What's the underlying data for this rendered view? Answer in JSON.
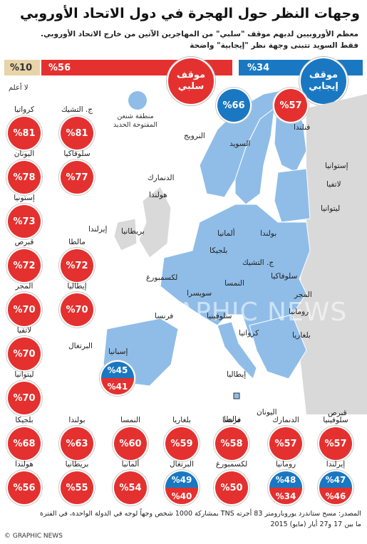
{
  "title": "وجهات النظر حول الهجرة في دول الاتحاد الأوروبي",
  "subtitle_line1": "معظم الأوروبيين لديهم موقف \"سلبي\" من المهاجرين الآتين من خارج الاتحاد الأوروبي.",
  "subtitle_line2": "فقط السويد تتبنى وجهة نظر \"إيجابية\" واضحة",
  "summary": {
    "negative_label": "موقف سلبي",
    "negative_value": "%56",
    "positive_label": "موقف إيجابي",
    "positive_value": "%34",
    "unknown_value": "%10",
    "unknown_label": "لا أعلم"
  },
  "legend": {
    "text": "منطقة شنغن المفتوحة الحديد"
  },
  "colors": {
    "negative": "#e4312f",
    "positive": "#1a78c2",
    "schengen": "#8fbde8",
    "non_schengen": "#d9d9d9"
  },
  "map_labels": {
    "norway": "النرويج",
    "sweden": "السويد",
    "finland": "فنلندا",
    "estonia": "إستوانيا",
    "latvia": "لاتفيا",
    "lithuania": "ليتوانيا",
    "denmark": "الدنمارك",
    "netherlands": "هولندا",
    "ireland": "إيرلندا",
    "uk": "بريطانيا",
    "poland": "بولندا",
    "germany": "ألمانيا",
    "belgium": "بلجيكا",
    "czech": "ج. التشيك",
    "luxembourg": "لكسمبورغ",
    "slovakia": "سلوفاكيا",
    "austria": "النمسا",
    "hungary": "المجر",
    "romania": "رومانيا",
    "france": "فرنسا",
    "switzerland": "سويسرا",
    "slovenia": "سلوفينيا",
    "croatia": "كرواتيا",
    "bulgaria": "بلغاريا",
    "portugal": "البرتغال",
    "spain": "إسبانيا",
    "italy": "إيطاليا",
    "malta": "مالطا",
    "greece": "اليونان",
    "cyprus": "قبرص"
  },
  "map_badges": {
    "sweden": "%66",
    "finland": "%57",
    "spain_pos": "%45",
    "spain_neg": "%41"
  },
  "countries": [
    {
      "name": "كرواتيا",
      "value": "%81"
    },
    {
      "name": "ج. التشيك",
      "value": "%81"
    },
    {
      "name": "اليونان",
      "value": "%78"
    },
    {
      "name": "سلوفاكيا",
      "value": "%77"
    },
    {
      "name": "إستونيا",
      "value": "%73"
    },
    {
      "name": "قبرص",
      "value": "%72"
    },
    {
      "name": "مالطا",
      "value": "%72"
    },
    {
      "name": "المجر",
      "value": "%70"
    },
    {
      "name": "إيطاليا",
      "value": "%70"
    },
    {
      "name": "لاتفيا",
      "value": "%70"
    },
    {
      "name": "ليتوانيا",
      "value": "%70"
    },
    {
      "name": "بلجيكا",
      "value": "%68"
    },
    {
      "name": "بولندا",
      "value": "%63"
    },
    {
      "name": "النمسا",
      "value": "%60"
    },
    {
      "name": "بلغاريا",
      "value": "%59"
    },
    {
      "name": "فرنسا",
      "value": "%58"
    },
    {
      "name": "الدنمارك",
      "value": "%57"
    },
    {
      "name": "سلوفينيا",
      "value": "%57"
    },
    {
      "name": "هولندا",
      "value": "%56"
    },
    {
      "name": "بريطانيا",
      "value": "%55"
    },
    {
      "name": "ألمانيا",
      "value": "%54"
    },
    {
      "name": "البرتغال",
      "pos": "%49",
      "neg": "%40"
    },
    {
      "name": "لكسمبورغ",
      "value": "%50"
    },
    {
      "name": "رومانيا",
      "pos": "%48",
      "neg": "%34"
    },
    {
      "name": "إيرلندا",
      "pos": "%47",
      "neg": "%46"
    }
  ],
  "source": {
    "line1": "المصدر: مسح ستاندرد يوروبارومتر 83 أجرته TNS بمشاركة 1000 شخص وجهاً لوجه في الدولة الواحدة، في الفترة",
    "line2": "ما بين 17 و27 أيار (مايو) 2015",
    "credit": "© GRAPHIC NEWS"
  },
  "watermark": "GRAPHIC NEWS"
}
